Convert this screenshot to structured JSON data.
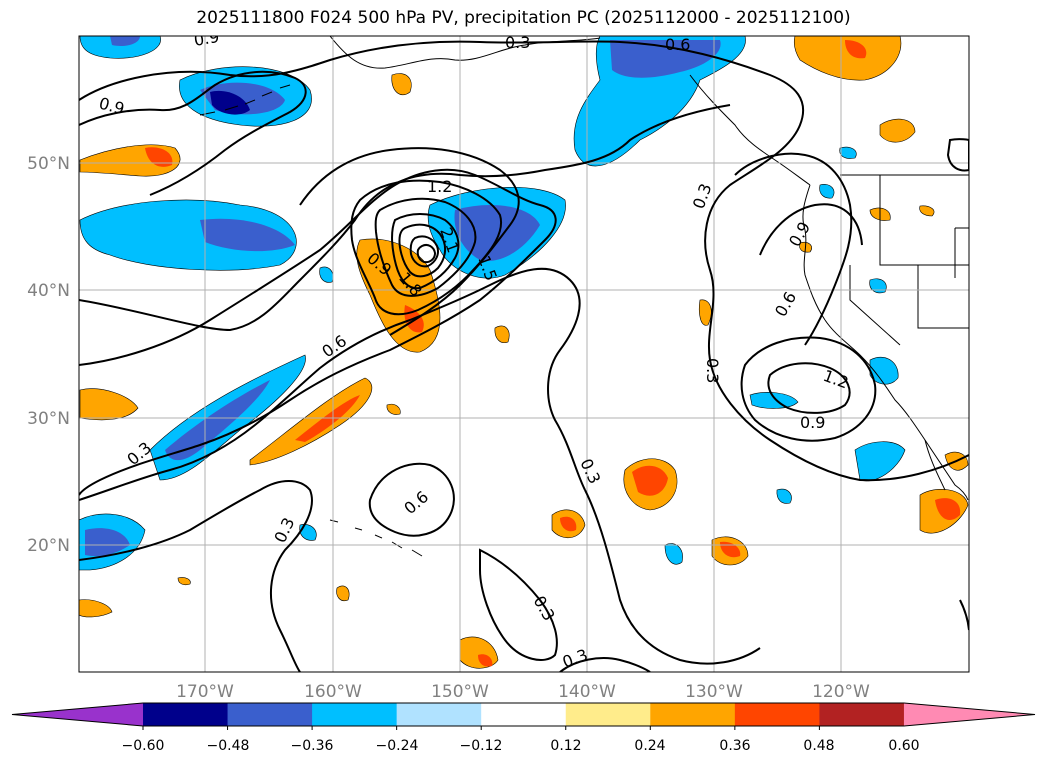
{
  "title": "2025111800 F024 500 hPa PV, precipitation PC (2025112000 - 2025112100)",
  "map": {
    "lat_ticks": [
      "50°N",
      "40°N",
      "30°N",
      "20°N"
    ],
    "lon_ticks": [
      "170°W",
      "160°W",
      "150°W",
      "140°W",
      "130°W",
      "120°W"
    ],
    "contour_labels": [
      "0.9",
      "0.3",
      "0.6",
      "0.9",
      "1.2",
      "2.1",
      "1.5",
      "0.9",
      "1.8",
      "0.6",
      "0.3",
      "0.3",
      "0.6",
      "0.3",
      "0.3",
      "0.3",
      "0.3",
      "0.9",
      "0.6",
      "0.3",
      "1.2",
      "0.9"
    ],
    "grid_color": "#b0b0b0"
  },
  "colorbar": {
    "tick_labels": [
      "−0.60",
      "−0.48",
      "−0.36",
      "−0.24",
      "−0.12",
      "0.12",
      "0.24",
      "0.36",
      "0.48",
      "0.60"
    ],
    "colors": [
      "#9932CC",
      "#00008B",
      "#3A5FCD",
      "#00BFFF",
      "#B0E2FF",
      "#FFFFFF",
      "#FFEC8B",
      "#FFA500",
      "#FF4500",
      "#B22222",
      "#FF8AB3"
    ]
  }
}
